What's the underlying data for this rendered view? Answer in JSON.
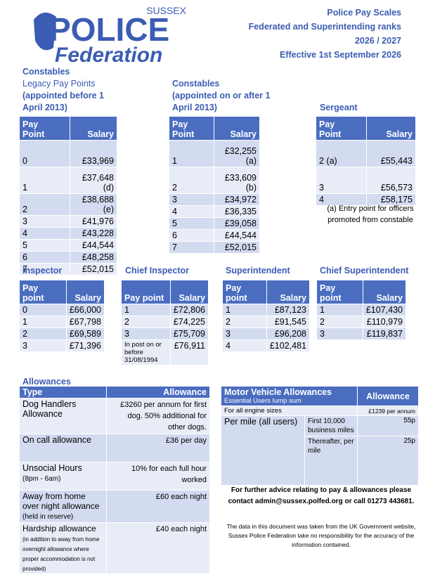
{
  "header": {
    "logo": {
      "county": "SUSSEX",
      "word1": "POLICE",
      "word2": "Federation"
    },
    "title_lines": [
      "Police Pay Scales",
      "Federated and Superintending ranks",
      "2026 / 2027",
      "Effective 1st September 2026"
    ]
  },
  "pay_tables": [
    {
      "title_lines": [
        "Constables",
        "Legacy Pay Points",
        "(appointed before 1 April 2013)"
      ],
      "columns": [
        "Pay Point",
        "Salary"
      ],
      "rows": [
        [
          "0",
          "£33,969"
        ],
        [
          "1",
          "£37,648 (d)"
        ],
        [
          "2",
          "£38,688 (e)"
        ],
        [
          "3",
          "£41,976"
        ],
        [
          "4",
          "£43,228"
        ],
        [
          "5",
          "£44,544"
        ],
        [
          "6",
          "£48,258"
        ],
        [
          "7",
          "£52,015"
        ]
      ]
    },
    {
      "title_lines": [
        "Constables",
        "(appointed on or after 1 April 2013)"
      ],
      "columns": [
        "Pay Point",
        "Salary"
      ],
      "rows": [
        [
          "1",
          "£32,255 (a)"
        ],
        [
          "2",
          "£33,609 (b)"
        ],
        [
          "3",
          "£34,972"
        ],
        [
          "4",
          "£36,335"
        ],
        [
          "5",
          "£39,058"
        ],
        [
          "6",
          "£44,544"
        ],
        [
          "7",
          "£52,015"
        ]
      ]
    },
    {
      "title_lines": [
        "Sergeant"
      ],
      "columns": [
        "Pay Point",
        "Salary"
      ],
      "rows": [
        [
          "2 (a)",
          "£55,443"
        ],
        [
          "3",
          "£56,573"
        ],
        [
          "4",
          "£58,175"
        ]
      ],
      "note": "(a) Entry point for officers promoted from constable"
    },
    {
      "title_lines": [
        "Inspector"
      ],
      "columns": [
        "Pay point",
        "Salary"
      ],
      "rows": [
        [
          "0",
          "£66,000"
        ],
        [
          "1",
          "£67,798"
        ],
        [
          "2",
          "£69,589"
        ],
        [
          "3",
          "£71,396"
        ]
      ]
    },
    {
      "title_lines": [
        "Chief Inspector"
      ],
      "columns": [
        "Pay point",
        "Salary"
      ],
      "rows": [
        [
          "1",
          "£72,806"
        ],
        [
          "2",
          "£74,225"
        ],
        [
          "3",
          "£75,709"
        ],
        [
          "In post on or before 31/08/1994",
          "£76,911"
        ]
      ]
    },
    {
      "title_lines": [
        "Superintendent"
      ],
      "columns": [
        "Pay point",
        "Salary"
      ],
      "rows": [
        [
          "1",
          "£87,123"
        ],
        [
          "2",
          "£91,545"
        ],
        [
          "3",
          "£96,208"
        ],
        [
          "4",
          "£102,481"
        ]
      ]
    },
    {
      "title_lines": [
        "Chief Superintendent"
      ],
      "columns": [
        "Pay point",
        "Salary"
      ],
      "rows": [
        [
          "1",
          "£107,430"
        ],
        [
          "2",
          "£110,979"
        ],
        [
          "3",
          "£119,837"
        ]
      ]
    }
  ],
  "allowances": {
    "title": "Allowances",
    "columns": [
      "Type",
      "Allowance"
    ],
    "rows": [
      {
        "type": "Dog Handlers Allowance",
        "allowance": "£3260 per annum for first dog. 50% additional for other dogs."
      },
      {
        "type": "On call allowance",
        "allowance": "£36 per day"
      },
      {
        "type": "Unsocial Hours",
        "note": "(8pm - 6am)",
        "allowance": "10% for each full hour worked"
      },
      {
        "type": "Away from home over night allowance",
        "note": "(held in reserve)",
        "allowance": "£60 each night"
      },
      {
        "type": "Hardship allowance",
        "note": "(in addition to away from home overnight allowance where proper accommodation is not provided)",
        "allowance": "£40 each night"
      }
    ]
  },
  "motor_vehicle": {
    "title": "Motor Vehicle Allowances",
    "subtitle": "Essential Users lump sum",
    "column": "Allowance",
    "lump_sum": {
      "label": "For all engine sizes",
      "value": "£1239 per annum"
    },
    "per_mile": {
      "label": "Per mile (all users)",
      "rows": [
        {
          "label": "First 10,000 business miles",
          "value": "55p"
        },
        {
          "label": "Thereafter, per mile",
          "value": "25p"
        }
      ]
    }
  },
  "footer": {
    "advice": "For further advice relating to pay & allowances please contact admin@sussex.polfed.org or call 01273 443681.",
    "disclaimer": "The data in this document was taken from the UK Government website, Sussex Police Federation take no responsibility for the accuracy of the information contained."
  }
}
